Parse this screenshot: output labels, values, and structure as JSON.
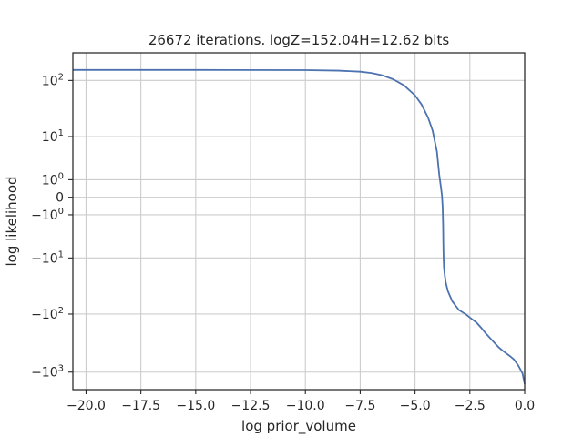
{
  "chart_data": {
    "type": "line",
    "title": "26672 iterations. logZ=152.04H=12.62 bits",
    "xlabel": "log prior_volume",
    "ylabel": "log likelihood",
    "xlim": [
      -20.6,
      0.0
    ],
    "yscale": "symlog",
    "ylim": [
      -2000,
      300
    ],
    "grid": true,
    "colors": {
      "line": "#4c72b0",
      "grid": "#cccccc",
      "axes": "#262626"
    },
    "x_ticks": [
      {
        "value": -20.0,
        "label": "−20.0"
      },
      {
        "value": -17.5,
        "label": "−17.5"
      },
      {
        "value": -15.0,
        "label": "−15.0"
      },
      {
        "value": -12.5,
        "label": "−12.5"
      },
      {
        "value": -10.0,
        "label": "−10.0"
      },
      {
        "value": -7.5,
        "label": "−7.5"
      },
      {
        "value": -5.0,
        "label": "−5.0"
      },
      {
        "value": -2.5,
        "label": "−2.5"
      },
      {
        "value": 0.0,
        "label": "0.0"
      }
    ],
    "y_ticks": [
      {
        "value": 100,
        "base": "10",
        "exp": "2"
      },
      {
        "value": 10,
        "base": "10",
        "exp": "1"
      },
      {
        "value": 1,
        "base": "10",
        "exp": "0"
      },
      {
        "value": 0,
        "base": "0",
        "exp": ""
      },
      {
        "value": -1,
        "base": "−10",
        "exp": "0"
      },
      {
        "value": -10,
        "base": "−10",
        "exp": "1"
      },
      {
        "value": -100,
        "base": "−10",
        "exp": "2"
      },
      {
        "value": -1000,
        "base": "−10",
        "exp": "3"
      }
    ],
    "series": [
      {
        "x": [
          -20.6,
          -15.0,
          -10.0,
          -8.5,
          -7.5,
          -7.0,
          -6.5,
          -6.0,
          -5.5,
          -5.0,
          -4.7,
          -4.4,
          -4.2,
          -4.0,
          -3.9,
          -3.82,
          -3.77,
          -3.74,
          -3.72,
          -3.71,
          -3.7,
          -3.69,
          -3.68,
          -3.65,
          -3.6,
          -3.5,
          -3.3,
          -3.0,
          -2.7,
          -2.5,
          -2.2,
          -2.0,
          -1.8,
          -1.5,
          -1.2,
          -1.0,
          -0.7,
          -0.5,
          -0.3,
          -0.1,
          0.0
        ],
        "y": [
          152,
          152,
          151,
          148,
          142,
          135,
          123,
          105,
          82,
          55,
          38,
          22,
          13,
          5,
          1.5,
          0.5,
          0.05,
          -0.5,
          -2,
          -5,
          -9,
          -12,
          -15,
          -20,
          -28,
          -40,
          -60,
          -85,
          -100,
          -115,
          -140,
          -170,
          -210,
          -280,
          -370,
          -430,
          -520,
          -600,
          -760,
          -1050,
          -1600
        ]
      }
    ]
  }
}
